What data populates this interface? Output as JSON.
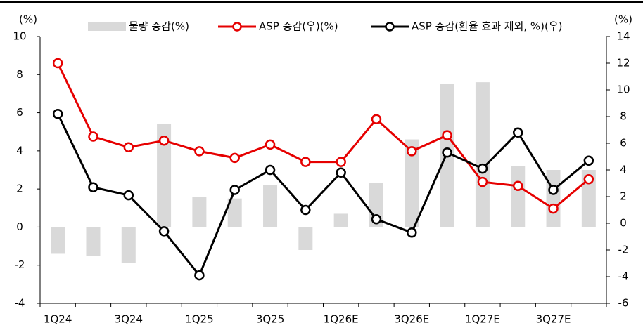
{
  "chart_data": {
    "type": "bar-line",
    "y_label": "(%)",
    "y2_label": "(%)",
    "categories": [
      "1Q24",
      null,
      "3Q24",
      null,
      "1Q25",
      null,
      "3Q25",
      null,
      "1Q26E",
      null,
      "3Q26E",
      null,
      "1Q27E",
      null,
      "3Q27E",
      null
    ],
    "ylim": [
      -4,
      10
    ],
    "yticks": [
      -4,
      -2,
      0,
      2,
      4,
      6,
      8,
      10
    ],
    "y2lim": [
      -6,
      14
    ],
    "y2ticks": [
      -6,
      -4,
      -2,
      0,
      2,
      4,
      6,
      8,
      10,
      12,
      14
    ],
    "series": [
      {
        "name": "물량 증감(%)",
        "type": "bar",
        "color": "#d9d9d9",
        "values": [
          -1.4,
          -1.5,
          -1.9,
          5.4,
          1.6,
          1.5,
          2.2,
          -1.2,
          0.7,
          2.3,
          4.6,
          7.5,
          7.6,
          3.2,
          3.0,
          3.0
        ]
      },
      {
        "name": "ASP 증감(우)(%)",
        "type": "line",
        "axis": "y2",
        "color": "#e60000",
        "values": [
          12.0,
          6.5,
          5.7,
          6.2,
          5.4,
          4.9,
          5.9,
          4.6,
          4.6,
          7.8,
          5.4,
          6.6,
          3.1,
          2.8,
          1.1,
          3.3
        ]
      },
      {
        "name": "ASP 증감(환율 효과 제외, %)(우)",
        "type": "line",
        "axis": "y2",
        "color": "#000000",
        "values": [
          8.2,
          2.7,
          2.1,
          -0.6,
          -3.9,
          2.5,
          4.0,
          1.0,
          3.8,
          0.3,
          -0.7,
          5.3,
          4.1,
          6.8,
          2.5,
          4.7
        ]
      }
    ]
  }
}
